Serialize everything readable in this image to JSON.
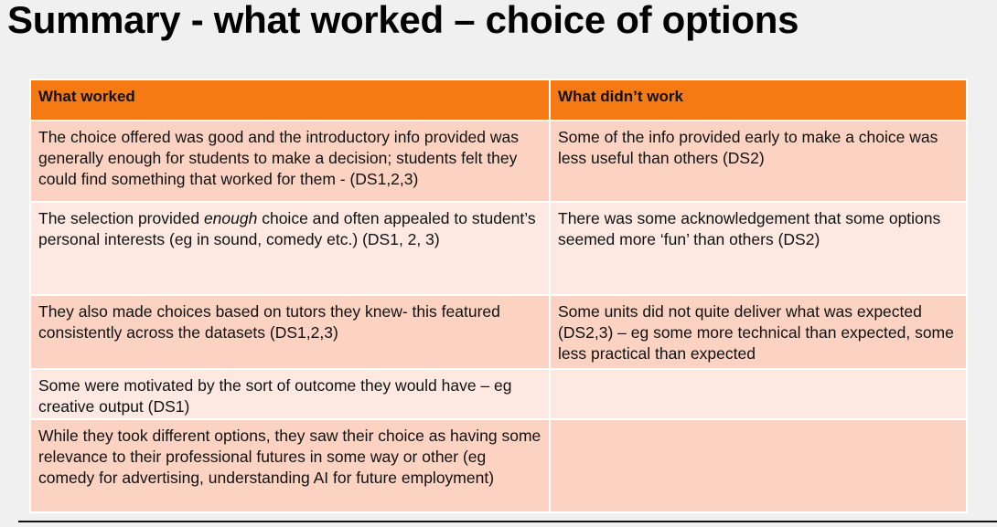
{
  "title": "Summary - what worked – choice of options",
  "table": {
    "headers": [
      "What worked",
      "What didn’t work"
    ],
    "rows": [
      {
        "worked": "The choice offered was good and the introductory info provided was generally enough for students to make a decision; students felt they could find something that worked for them - (DS1,2,3)",
        "didnt": "Some of the info provided early to make a choice was less useful than others (DS2)"
      },
      {
        "worked_pre": "The selection provided ",
        "worked_em": "enough",
        "worked_post": " choice and often appealed to student’s personal interests (eg in sound, comedy etc.) (DS1, 2, 3)",
        "didnt": "There was some acknowledgement that some options seemed more ‘fun’ than others (DS2)"
      },
      {
        "worked": "They also made choices based on tutors they knew- this featured consistently across the datasets (DS1,2,3)",
        "didnt": "Some units did not quite deliver what was expected (DS2,3) – eg some more technical than expected, some less practical than expected"
      },
      {
        "worked": "Some were motivated by the sort of outcome they would have – eg creative output (DS1)",
        "didnt": ""
      },
      {
        "worked": "While they took different options, they saw their choice as having some relevance to their professional futures in some way or other (eg comedy for advertising, understanding AI for future employment)",
        "didnt": ""
      }
    ]
  }
}
